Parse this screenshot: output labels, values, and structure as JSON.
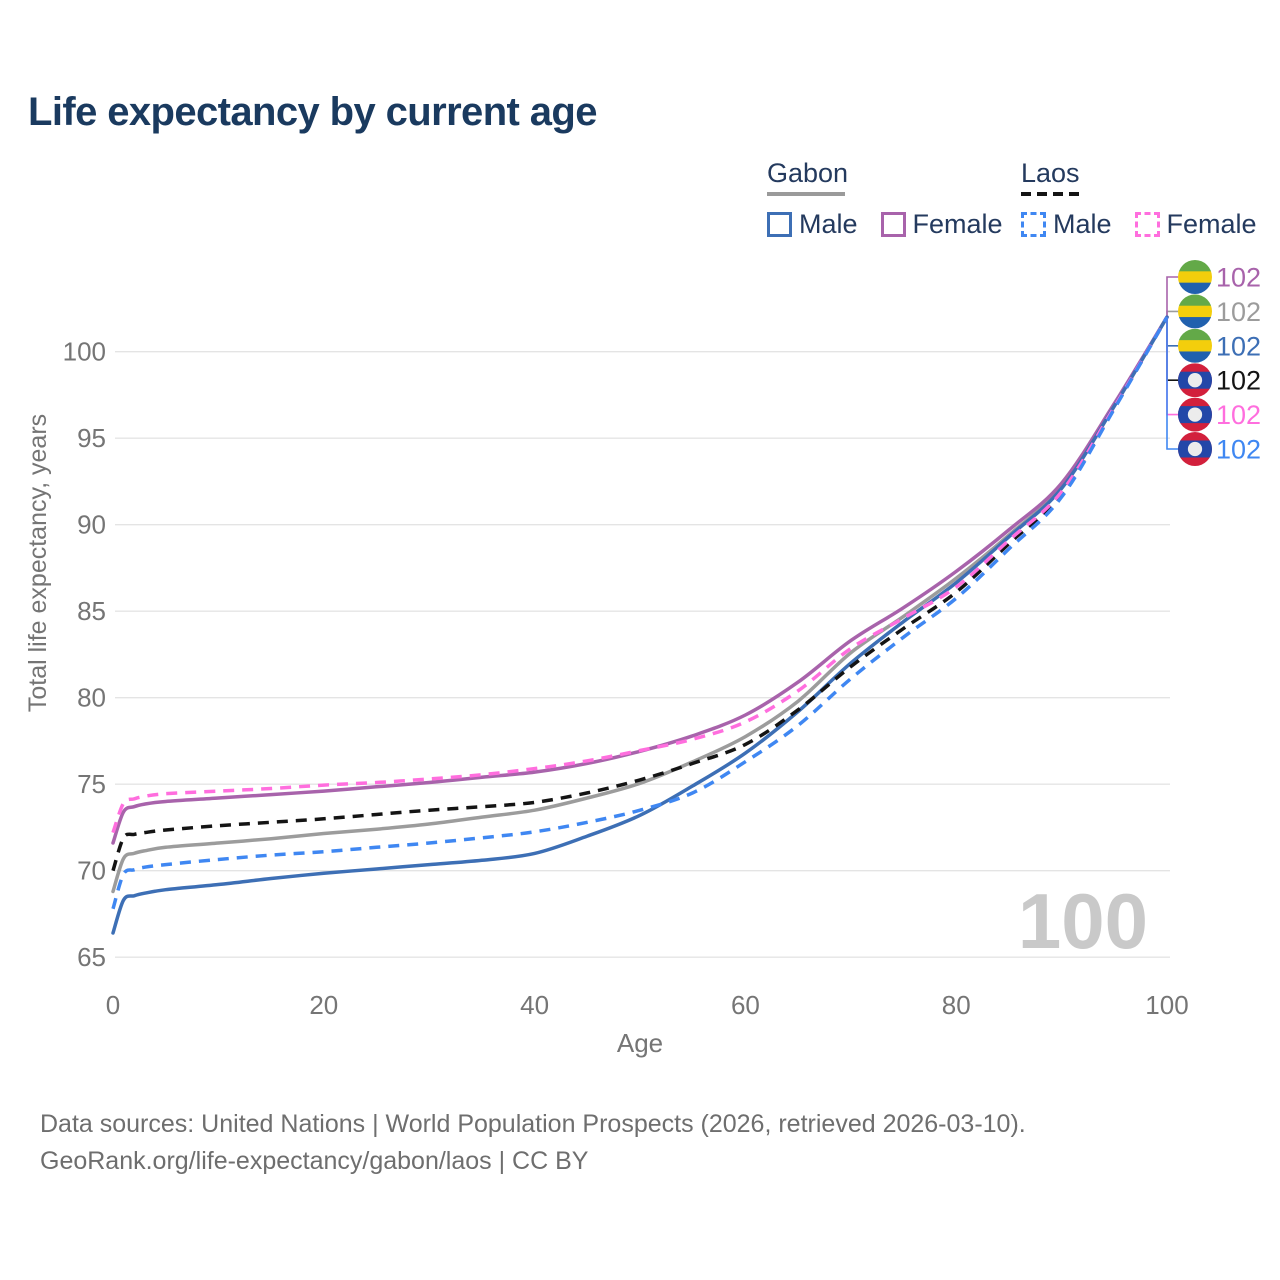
{
  "title": "Life expectancy by current age",
  "watermark_max_age": "100",
  "colors": {
    "title_text": "#1a3a5f",
    "legend_text": "#243a5e",
    "axis_text": "#757575",
    "grid": "#e4e4e4",
    "watermark": "#c9c9c9",
    "footer_text": "#6e6e6e",
    "gabon_underline": "#9a9a9a",
    "laos_underline": "#141414",
    "flag_gabon_stripes": [
      "#63a948",
      "#f3ce0c",
      "#2161ae"
    ],
    "flag_laos_red": "#d2203c",
    "flag_laos_blue": "#2347a8",
    "flag_laos_disc": "#ececec"
  },
  "legend": {
    "groups": [
      {
        "label": "Gabon",
        "line_style": "solid",
        "line_color": "#9a9a9a",
        "items": [
          {
            "label": "Male",
            "color": "#3d6fb5",
            "style": "solid"
          },
          {
            "label": "Female",
            "color": "#a863ab",
            "style": "solid"
          }
        ]
      },
      {
        "label": "Laos",
        "line_style": "dashed",
        "line_color": "#141414",
        "items": [
          {
            "label": "Male",
            "color": "#3f87f2",
            "style": "dashed"
          },
          {
            "label": "Female",
            "color": "#ff6ede",
            "style": "dashed"
          }
        ]
      }
    ]
  },
  "chart_data": {
    "type": "line",
    "title": "Life expectancy by current age",
    "xlabel": "Age",
    "ylabel": "Total life expectancy, years",
    "xlim": [
      0,
      100
    ],
    "ylim": [
      65,
      103
    ],
    "x_ticks": [
      0,
      20,
      40,
      60,
      80,
      100
    ],
    "y_ticks": [
      65,
      70,
      75,
      80,
      85,
      90,
      95,
      100
    ],
    "grid": "horizontal",
    "legend_position": "top-right",
    "x": [
      0,
      1,
      2,
      3,
      5,
      10,
      15,
      20,
      25,
      30,
      35,
      40,
      45,
      50,
      55,
      60,
      65,
      70,
      75,
      80,
      85,
      90,
      95,
      100
    ],
    "series": [
      {
        "name": "Gabon Total",
        "country": "Gabon",
        "sex": "Total",
        "color": "#9c9c9c",
        "style": "solid",
        "flag": "gabon",
        "end_label": "102",
        "label_row": 1,
        "values": [
          68.8,
          70.7,
          71.0,
          71.15,
          71.35,
          71.6,
          71.85,
          72.15,
          72.4,
          72.7,
          73.1,
          73.5,
          74.2,
          75.05,
          76.3,
          77.75,
          79.8,
          82.6,
          84.7,
          86.9,
          89.4,
          92.2,
          96.9,
          102
        ]
      },
      {
        "name": "Gabon Female",
        "country": "Gabon",
        "sex": "Female",
        "color": "#a863ab",
        "style": "solid",
        "flag": "gabon",
        "end_label": "102",
        "label_row": 0,
        "values": [
          71.6,
          73.4,
          73.7,
          73.85,
          74.0,
          74.2,
          74.4,
          74.6,
          74.85,
          75.1,
          75.4,
          75.7,
          76.2,
          76.9,
          77.8,
          79.0,
          80.9,
          83.3,
          85.2,
          87.3,
          89.7,
          92.4,
          97.0,
          102
        ]
      },
      {
        "name": "Gabon Male",
        "country": "Gabon",
        "sex": "Male",
        "color": "#3d6fb5",
        "style": "solid",
        "flag": "gabon",
        "end_label": "102",
        "label_row": 2,
        "values": [
          66.4,
          68.3,
          68.55,
          68.7,
          68.9,
          69.2,
          69.55,
          69.85,
          70.1,
          70.35,
          70.6,
          71.0,
          72.0,
          73.2,
          74.9,
          76.8,
          79.2,
          82.0,
          84.4,
          86.65,
          89.3,
          92.1,
          96.85,
          102
        ]
      },
      {
        "name": "Laos Total",
        "country": "Laos",
        "sex": "Total",
        "color": "#141414",
        "style": "dashed",
        "flag": "laos",
        "end_label": "102",
        "label_row": 3,
        "values": [
          70.0,
          71.9,
          72.1,
          72.2,
          72.35,
          72.6,
          72.8,
          73.0,
          73.25,
          73.5,
          73.7,
          73.95,
          74.5,
          75.25,
          76.2,
          77.3,
          79.3,
          81.8,
          84.0,
          86.1,
          88.9,
          91.8,
          96.75,
          102
        ]
      },
      {
        "name": "Laos Female",
        "country": "Laos",
        "sex": "Female",
        "color": "#ff6ede",
        "style": "dashed",
        "flag": "laos",
        "end_label": "102",
        "label_row": 4,
        "values": [
          72.2,
          73.9,
          74.15,
          74.3,
          74.45,
          74.6,
          74.75,
          74.95,
          75.1,
          75.3,
          75.55,
          75.9,
          76.35,
          76.95,
          77.6,
          78.6,
          80.4,
          82.85,
          84.6,
          86.4,
          89.1,
          91.9,
          96.8,
          102
        ]
      },
      {
        "name": "Laos Male",
        "country": "Laos",
        "sex": "Male",
        "color": "#3f87f2",
        "style": "dashed",
        "flag": "laos",
        "end_label": "102",
        "label_row": 5,
        "values": [
          67.8,
          69.8,
          70.05,
          70.2,
          70.35,
          70.65,
          70.9,
          71.1,
          71.35,
          71.6,
          71.9,
          72.25,
          72.8,
          73.5,
          74.5,
          76.3,
          78.4,
          81.1,
          83.5,
          85.75,
          88.6,
          91.6,
          96.7,
          102
        ]
      }
    ]
  },
  "footer": {
    "line1": "Data sources: United Nations | World Population Prospects (2026, retrieved 2026-03-10).",
    "line2": "GeoRank.org/life-expectancy/gabon/laos | CC BY"
  }
}
